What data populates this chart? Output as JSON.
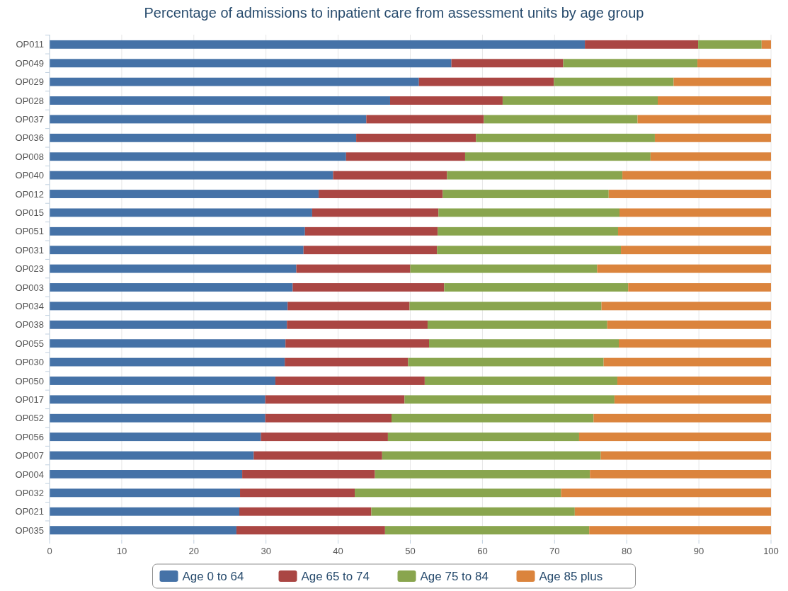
{
  "chart_data": {
    "type": "bar",
    "orientation": "horizontal",
    "stacked": true,
    "title": "Percentage of admissions to inpatient care from assessment units by age group",
    "categories": [
      "OP011",
      "OP049",
      "OP029",
      "OP028",
      "OP037",
      "OP036",
      "OP008",
      "OP040",
      "OP012",
      "OP015",
      "OP051",
      "OP031",
      "OP023",
      "OP003",
      "OP034",
      "OP038",
      "OP055",
      "OP030",
      "OP050",
      "OP017",
      "OP052",
      "OP056",
      "OP007",
      "OP004",
      "OP032",
      "OP021",
      "OP035"
    ],
    "series": [
      {
        "name": "Age 0 to 64",
        "color": "#4572a7",
        "values": [
          74.2,
          55.7,
          51.2,
          47.2,
          43.9,
          42.5,
          41.1,
          39.3,
          37.3,
          36.4,
          35.4,
          35.2,
          34.2,
          33.7,
          33.0,
          32.9,
          32.7,
          32.6,
          31.3,
          29.9,
          29.9,
          29.3,
          28.3,
          26.7,
          26.4,
          26.3,
          25.9
        ]
      },
      {
        "name": "Age 65 to 74",
        "color": "#aa4643",
        "values": [
          15.7,
          15.5,
          18.7,
          15.6,
          16.3,
          16.6,
          16.5,
          15.8,
          17.2,
          17.5,
          18.4,
          18.5,
          15.8,
          21.0,
          16.9,
          19.5,
          19.9,
          17.1,
          20.7,
          19.3,
          17.5,
          17.6,
          17.8,
          18.4,
          15.9,
          18.3,
          20.6
        ]
      },
      {
        "name": "Age 75 to 84",
        "color": "#89a54e",
        "values": [
          8.8,
          18.6,
          16.6,
          21.5,
          21.3,
          24.8,
          25.7,
          24.3,
          23.0,
          25.1,
          25.0,
          25.5,
          25.9,
          25.5,
          26.6,
          24.9,
          26.3,
          27.1,
          26.7,
          29.1,
          28.0,
          26.5,
          30.3,
          29.8,
          28.6,
          28.2,
          28.3
        ]
      },
      {
        "name": "Age 85 plus",
        "color": "#db843d",
        "values": [
          1.3,
          10.2,
          13.5,
          15.7,
          18.5,
          16.1,
          16.7,
          20.6,
          22.5,
          21.0,
          21.2,
          20.8,
          24.1,
          19.8,
          23.5,
          22.7,
          21.1,
          23.2,
          21.3,
          21.7,
          24.6,
          26.6,
          23.6,
          25.1,
          29.1,
          27.2,
          25.2
        ]
      }
    ],
    "xlim": [
      0,
      100
    ],
    "xticks": [
      0,
      10,
      20,
      30,
      40,
      50,
      60,
      70,
      80,
      90,
      100
    ],
    "grid": "x",
    "legend": "bottom"
  }
}
